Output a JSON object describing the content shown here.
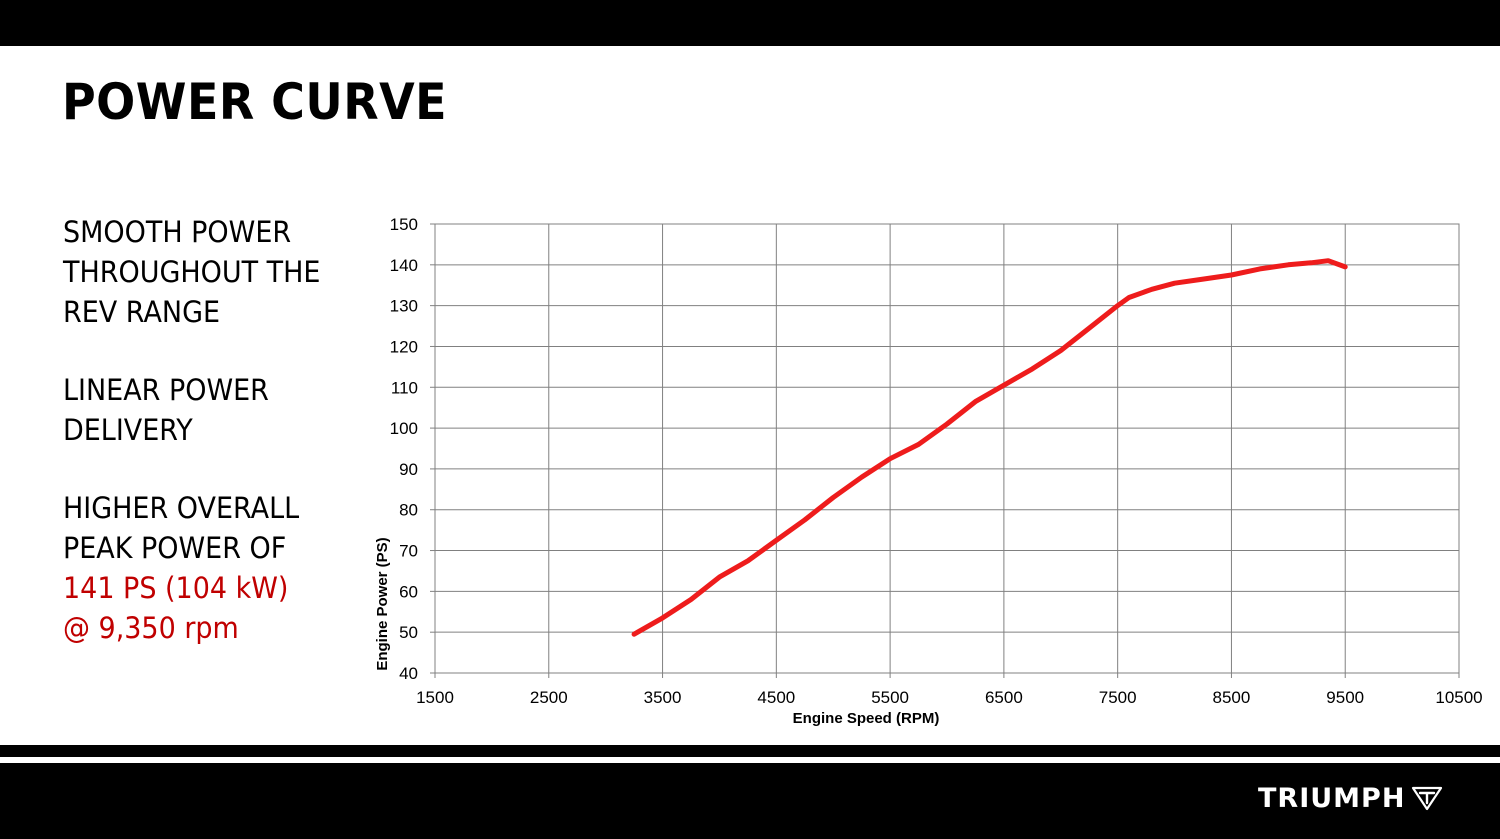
{
  "header": {
    "title": "POWER CURVE"
  },
  "bullets": [
    {
      "text": "SMOOTH POWER\nTHROUGHOUT THE\nREV RANGE"
    },
    {
      "text": "LINEAR POWER\nDELIVERY"
    },
    {
      "text": "HIGHER OVERALL\nPEAK POWER OF",
      "accent_1": "141 PS (104 kW)",
      "accent_2": "@ 9,350 rpm"
    }
  ],
  "brand": {
    "name": "TRIUMPH",
    "icon": "triumph-shield-logo"
  },
  "colors": {
    "accent": "#c00000",
    "line": "#ee1c1c",
    "bars": "#000000"
  },
  "chart_data": {
    "type": "line",
    "xlabel": "Engine Speed (RPM)",
    "ylabel": "Engine Power (PS)",
    "xlim": [
      1500,
      10500
    ],
    "ylim": [
      40,
      150
    ],
    "xticks": [
      1500,
      2500,
      3500,
      4500,
      5500,
      6500,
      7500,
      8500,
      9500,
      10500
    ],
    "yticks": [
      40,
      50,
      60,
      70,
      80,
      90,
      100,
      110,
      120,
      130,
      140,
      150
    ],
    "grid": true,
    "series": [
      {
        "x": [
          3250,
          3500,
          3750,
          4000,
          4250,
          4500,
          4750,
          5000,
          5250,
          5500,
          5750,
          6000,
          6250,
          6500,
          6750,
          7000,
          7250,
          7500,
          7600,
          7800,
          8000,
          8250,
          8500,
          8750,
          9000,
          9200,
          9350,
          9500
        ],
        "y": [
          49.5,
          53.5,
          58,
          63.5,
          67.5,
          72.5,
          77.5,
          83,
          88,
          92.5,
          96,
          101,
          106.5,
          110.5,
          114.5,
          119,
          124.5,
          130,
          132,
          134,
          135.5,
          136.5,
          137.5,
          139,
          140,
          140.5,
          141,
          139.5
        ]
      }
    ]
  }
}
